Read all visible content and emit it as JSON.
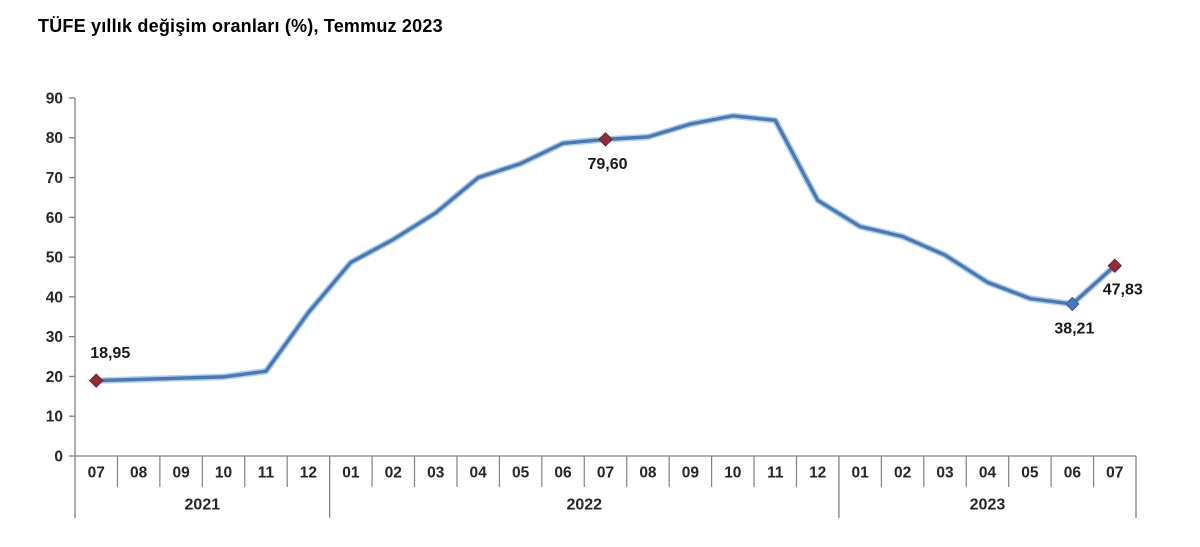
{
  "title": "TÜFE yıllık değişim oranları (%), Temmuz 2023",
  "chart_data": {
    "type": "line",
    "title": "TÜFE yıllık değişim oranları (%), Temmuz 2023",
    "x_months": [
      "07",
      "08",
      "09",
      "10",
      "11",
      "12",
      "01",
      "02",
      "03",
      "04",
      "05",
      "06",
      "07",
      "08",
      "09",
      "10",
      "11",
      "12",
      "01",
      "02",
      "03",
      "04",
      "05",
      "06",
      "07"
    ],
    "year_groups": [
      {
        "label": "2021",
        "start_index": 0,
        "count": 6
      },
      {
        "label": "2022",
        "start_index": 6,
        "count": 12
      },
      {
        "label": "2023",
        "start_index": 18,
        "count": 7
      }
    ],
    "series": [
      {
        "name": "TÜFE yıllık değişim oranı (%)",
        "values": [
          18.95,
          19.25,
          19.58,
          19.89,
          21.31,
          36.08,
          48.69,
          54.44,
          61.14,
          69.97,
          73.5,
          78.62,
          79.6,
          80.21,
          83.45,
          85.51,
          84.39,
          64.27,
          57.68,
          55.18,
          50.51,
          43.68,
          39.59,
          38.21,
          47.83
        ]
      }
    ],
    "y_ticks": [
      0,
      10,
      20,
      30,
      40,
      50,
      60,
      70,
      80,
      90
    ],
    "ylim": [
      0,
      90
    ],
    "xlabel": "",
    "ylabel": "",
    "grid": false,
    "legend": "none",
    "annotations": [
      {
        "month_index": 0,
        "label": "18,95",
        "marker": "dark-red",
        "label_pos": "above"
      },
      {
        "month_index": 12,
        "label": "79,60",
        "marker": "dark-red",
        "label_pos": "below"
      },
      {
        "month_index": 23,
        "label": "38,21",
        "marker": "blue",
        "label_pos": "below"
      },
      {
        "month_index": 24,
        "label": "47,83",
        "marker": "dark-red",
        "label_pos": "below-right"
      }
    ],
    "colors": {
      "line": "#4679b8",
      "line_halo": "#8fb3da",
      "marker_dark_red": "#942c38",
      "marker_dark_red_edge": "#6e1f29",
      "marker_blue": "#4679b8",
      "marker_blue_edge": "#35608f",
      "axis": "#808080",
      "tick_text": "#262626",
      "data_label_text": "#1a1a1a"
    }
  }
}
